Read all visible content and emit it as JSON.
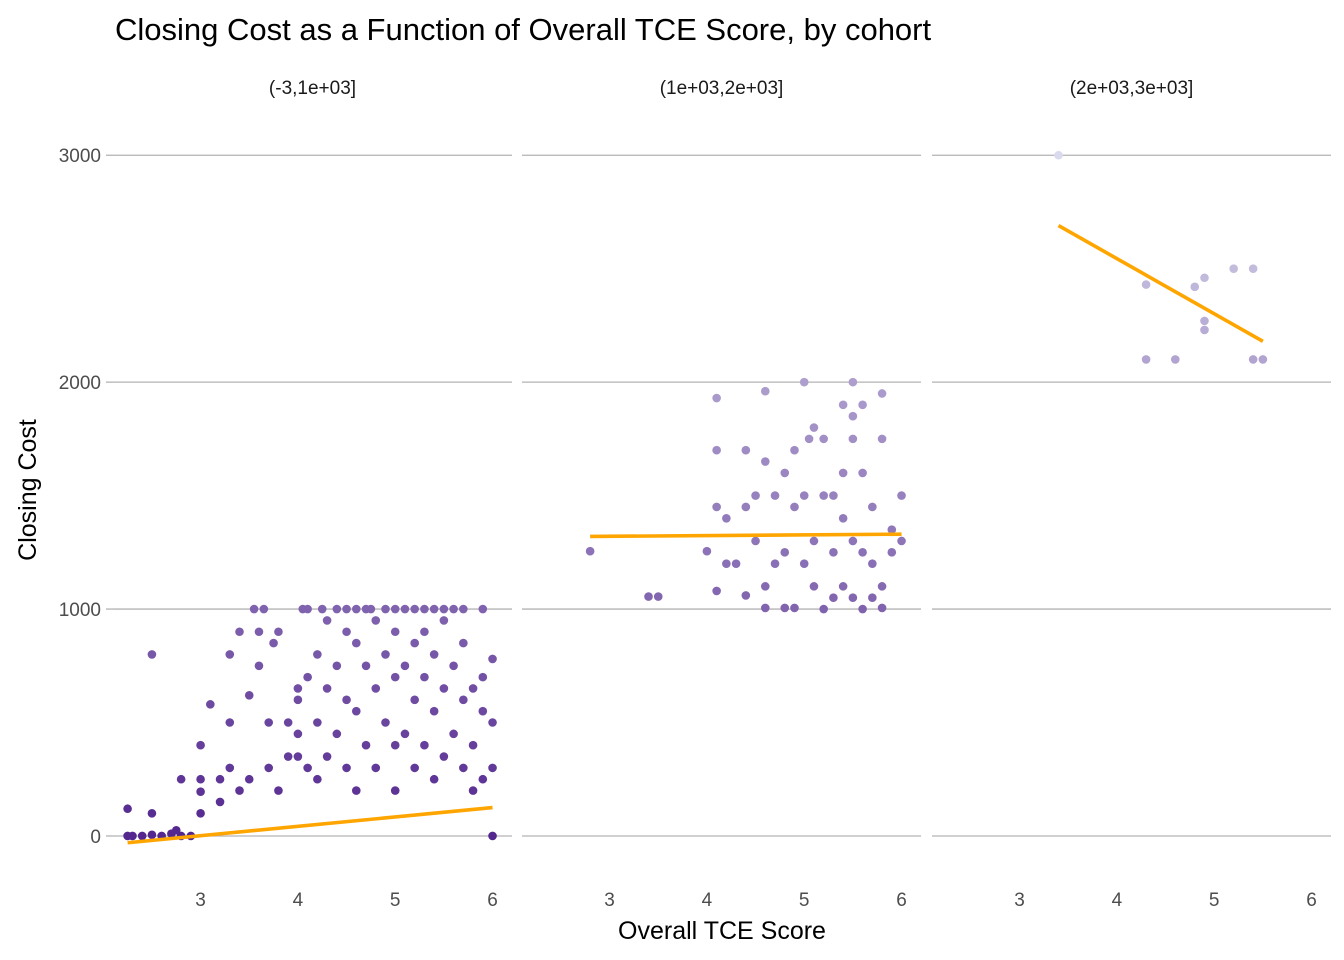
{
  "chart_data": {
    "type": "scatter",
    "title": "Closing Cost as a Function of Overall TCE Score, by cohort",
    "xlabel": "Overall TCE Score",
    "ylabel": "Closing Cost",
    "xlim": [
      2.1,
      6.2
    ],
    "ylim": [
      -150,
      3120
    ],
    "x_ticks": [
      3,
      4,
      5,
      6
    ],
    "y_ticks": [
      0,
      1000,
      2000,
      3000
    ],
    "grid": "horizontal major lines",
    "trend_color": "#FFA500",
    "point_color_low": "#54278F",
    "point_color_high": "#D9DAED",
    "panels": [
      {
        "label": "(-3,1e+03]",
        "trend": {
          "x": [
            2.25,
            6.0
          ],
          "y": [
            -30,
            125
          ]
        },
        "points": [
          [
            2.25,
            120
          ],
          [
            2.25,
            0
          ],
          [
            2.3,
            0
          ],
          [
            2.4,
            0
          ],
          [
            2.5,
            5
          ],
          [
            2.5,
            800
          ],
          [
            2.5,
            100
          ],
          [
            2.6,
            0
          ],
          [
            2.7,
            10
          ],
          [
            2.75,
            25
          ],
          [
            2.8,
            250
          ],
          [
            2.8,
            0
          ],
          [
            2.9,
            0
          ],
          [
            3.0,
            250
          ],
          [
            3.0,
            195
          ],
          [
            3.0,
            100
          ],
          [
            3.0,
            400
          ],
          [
            3.1,
            580
          ],
          [
            3.2,
            250
          ],
          [
            3.2,
            150
          ],
          [
            3.3,
            500
          ],
          [
            3.3,
            300
          ],
          [
            3.3,
            800
          ],
          [
            3.4,
            900
          ],
          [
            3.4,
            200
          ],
          [
            3.5,
            620
          ],
          [
            3.5,
            250
          ],
          [
            3.55,
            1000
          ],
          [
            3.6,
            750
          ],
          [
            3.6,
            900
          ],
          [
            3.65,
            1000
          ],
          [
            3.7,
            300
          ],
          [
            3.7,
            500
          ],
          [
            3.75,
            850
          ],
          [
            3.8,
            900
          ],
          [
            3.8,
            200
          ],
          [
            3.9,
            500
          ],
          [
            3.9,
            350
          ],
          [
            4.0,
            650
          ],
          [
            4.0,
            600
          ],
          [
            4.0,
            450
          ],
          [
            4.0,
            350
          ],
          [
            4.05,
            1000
          ],
          [
            4.1,
            1000
          ],
          [
            4.1,
            700
          ],
          [
            4.1,
            300
          ],
          [
            4.2,
            800
          ],
          [
            4.2,
            500
          ],
          [
            4.2,
            250
          ],
          [
            4.25,
            1000
          ],
          [
            4.3,
            950
          ],
          [
            4.3,
            650
          ],
          [
            4.3,
            350
          ],
          [
            4.4,
            1000
          ],
          [
            4.4,
            750
          ],
          [
            4.4,
            450
          ],
          [
            4.5,
            1000
          ],
          [
            4.5,
            900
          ],
          [
            4.5,
            600
          ],
          [
            4.5,
            300
          ],
          [
            4.6,
            1000
          ],
          [
            4.6,
            850
          ],
          [
            4.6,
            550
          ],
          [
            4.6,
            200
          ],
          [
            4.7,
            1000
          ],
          [
            4.7,
            750
          ],
          [
            4.7,
            400
          ],
          [
            4.75,
            1000
          ],
          [
            4.8,
            950
          ],
          [
            4.8,
            650
          ],
          [
            4.8,
            300
          ],
          [
            4.9,
            1000
          ],
          [
            4.9,
            800
          ],
          [
            4.9,
            500
          ],
          [
            5.0,
            1000
          ],
          [
            5.0,
            900
          ],
          [
            5.0,
            700
          ],
          [
            5.0,
            400
          ],
          [
            5.0,
            200
          ],
          [
            5.1,
            1000
          ],
          [
            5.1,
            750
          ],
          [
            5.1,
            450
          ],
          [
            5.2,
            1000
          ],
          [
            5.2,
            850
          ],
          [
            5.2,
            600
          ],
          [
            5.2,
            300
          ],
          [
            5.3,
            1000
          ],
          [
            5.3,
            900
          ],
          [
            5.3,
            700
          ],
          [
            5.3,
            400
          ],
          [
            5.4,
            1000
          ],
          [
            5.4,
            800
          ],
          [
            5.4,
            550
          ],
          [
            5.4,
            250
          ],
          [
            5.5,
            1000
          ],
          [
            5.5,
            950
          ],
          [
            5.5,
            650
          ],
          [
            5.5,
            350
          ],
          [
            5.6,
            1000
          ],
          [
            5.6,
            750
          ],
          [
            5.6,
            450
          ],
          [
            5.7,
            1000
          ],
          [
            5.7,
            850
          ],
          [
            5.7,
            600
          ],
          [
            5.7,
            300
          ],
          [
            5.8,
            650
          ],
          [
            5.8,
            400
          ],
          [
            5.8,
            200
          ],
          [
            5.9,
            1000
          ],
          [
            5.9,
            700
          ],
          [
            5.9,
            550
          ],
          [
            5.9,
            250
          ],
          [
            6.0,
            780
          ],
          [
            6.0,
            500
          ],
          [
            6.0,
            300
          ],
          [
            6.0,
            0
          ]
        ]
      },
      {
        "label": "(1e+03,2e+03]",
        "trend": {
          "x": [
            2.8,
            6.0
          ],
          "y": [
            1320,
            1330
          ]
        },
        "points": [
          [
            2.8,
            1255
          ],
          [
            3.4,
            1055
          ],
          [
            3.5,
            1055
          ],
          [
            4.0,
            1255
          ],
          [
            4.1,
            1930
          ],
          [
            4.1,
            1700
          ],
          [
            4.1,
            1450
          ],
          [
            4.1,
            1080
          ],
          [
            4.2,
            1200
          ],
          [
            4.2,
            1400
          ],
          [
            4.3,
            1200
          ],
          [
            4.4,
            1700
          ],
          [
            4.4,
            1450
          ],
          [
            4.4,
            1060
          ],
          [
            4.5,
            1500
          ],
          [
            4.5,
            1300
          ],
          [
            4.6,
            1960
          ],
          [
            4.6,
            1650
          ],
          [
            4.6,
            1100
          ],
          [
            4.6,
            1005
          ],
          [
            4.7,
            1500
          ],
          [
            4.7,
            1200
          ],
          [
            4.8,
            1600
          ],
          [
            4.8,
            1250
          ],
          [
            4.8,
            1005
          ],
          [
            4.9,
            1700
          ],
          [
            4.9,
            1450
          ],
          [
            4.9,
            1005
          ],
          [
            5.0,
            2000
          ],
          [
            5.0,
            1500
          ],
          [
            5.0,
            1200
          ],
          [
            5.05,
            1750
          ],
          [
            5.1,
            1800
          ],
          [
            5.1,
            1300
          ],
          [
            5.1,
            1100
          ],
          [
            5.2,
            1750
          ],
          [
            5.2,
            1500
          ],
          [
            5.2,
            1000
          ],
          [
            5.3,
            1500
          ],
          [
            5.3,
            1250
          ],
          [
            5.3,
            1050
          ],
          [
            5.4,
            1900
          ],
          [
            5.4,
            1600
          ],
          [
            5.4,
            1400
          ],
          [
            5.4,
            1100
          ],
          [
            5.5,
            2000
          ],
          [
            5.5,
            1850
          ],
          [
            5.5,
            1750
          ],
          [
            5.5,
            1300
          ],
          [
            5.5,
            1050
          ],
          [
            5.6,
            1900
          ],
          [
            5.6,
            1600
          ],
          [
            5.6,
            1250
          ],
          [
            5.6,
            1000
          ],
          [
            5.7,
            1450
          ],
          [
            5.7,
            1200
          ],
          [
            5.7,
            1050
          ],
          [
            5.8,
            1950
          ],
          [
            5.8,
            1750
          ],
          [
            5.8,
            1100
          ],
          [
            5.8,
            1005
          ],
          [
            5.9,
            1350
          ],
          [
            5.9,
            1250
          ],
          [
            6.0,
            1500
          ],
          [
            6.0,
            1300
          ]
        ]
      },
      {
        "label": "(2e+03,3e+03]",
        "trend": {
          "x": [
            3.4,
            5.5
          ],
          "y": [
            2690,
            2180
          ]
        },
        "points": [
          [
            3.4,
            3000
          ],
          [
            4.3,
            2430
          ],
          [
            4.3,
            2100
          ],
          [
            4.6,
            2100
          ],
          [
            4.8,
            2420
          ],
          [
            4.9,
            2460
          ],
          [
            4.9,
            2270
          ],
          [
            4.9,
            2230
          ],
          [
            5.2,
            2500
          ],
          [
            5.4,
            2500
          ],
          [
            5.4,
            2100
          ],
          [
            5.5,
            2100
          ]
        ]
      }
    ]
  }
}
